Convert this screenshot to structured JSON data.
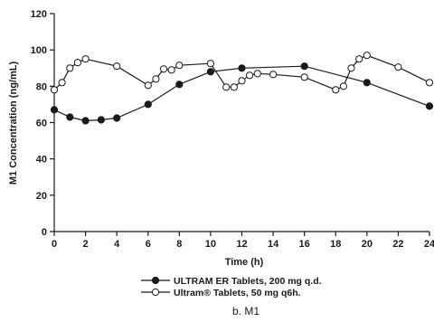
{
  "chart_data": {
    "type": "line",
    "xlabel": "Time (h)",
    "ylabel": "M1 Concentration (ng/mL)",
    "xlim": [
      0,
      24
    ],
    "ylim": [
      0,
      120
    ],
    "xticks": [
      0,
      2,
      4,
      6,
      8,
      10,
      12,
      14,
      16,
      18,
      20,
      22,
      24
    ],
    "yticks": [
      0,
      20,
      40,
      60,
      80,
      100,
      120
    ],
    "grid": false,
    "legend_position": "bottom-center",
    "caption": "b. M1",
    "series": [
      {
        "name": "ULTRAM ER Tablets, 200 mg q.d.",
        "marker": "filled-circle",
        "color": "#1a1a1a",
        "x": [
          0,
          1,
          2,
          3,
          4,
          6,
          8,
          10,
          12,
          16,
          20,
          24
        ],
        "y": [
          67,
          63,
          61,
          61.5,
          62.5,
          70,
          81,
          88,
          90,
          91,
          82,
          69
        ]
      },
      {
        "name": "Ultram® Tablets, 50 mg q6h.",
        "marker": "open-circle",
        "color": "#1a1a1a",
        "x": [
          0,
          0.5,
          1,
          1.5,
          2,
          4,
          6,
          6.5,
          7,
          7.5,
          8,
          10,
          11,
          11.5,
          12,
          12.5,
          13,
          14,
          16,
          18,
          18.5,
          19,
          19.5,
          20,
          22,
          24
        ],
        "y": [
          78,
          82,
          90,
          93,
          95,
          91,
          80.5,
          84,
          89.5,
          89,
          91.5,
          92.5,
          79.5,
          79.5,
          83,
          86,
          87,
          86.5,
          85,
          78,
          80,
          90,
          95,
          97,
          90.5,
          82
        ]
      }
    ]
  }
}
